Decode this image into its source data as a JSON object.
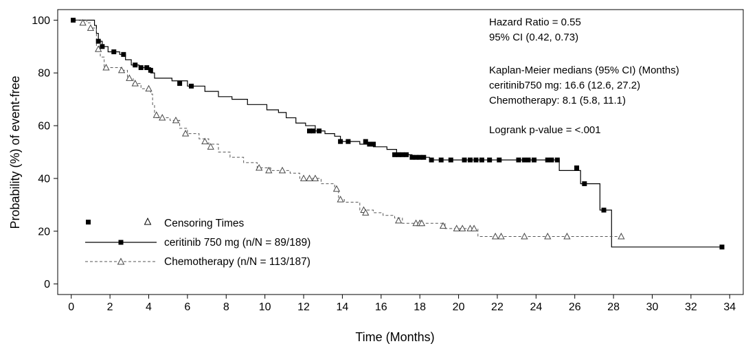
{
  "chart_data": {
    "type": "line",
    "subtype": "kaplan-meier",
    "xlabel": "Time (Months)",
    "ylabel": "Probability (%) of event-free",
    "xlim": [
      -0.7,
      34.7
    ],
    "ylim": [
      -4,
      104
    ],
    "xticks": [
      0,
      2,
      4,
      6,
      8,
      10,
      12,
      14,
      16,
      18,
      20,
      22,
      24,
      26,
      28,
      30,
      32,
      34
    ],
    "yticks": [
      0,
      20,
      40,
      60,
      80,
      100
    ],
    "grid": false,
    "annotations": [
      "Hazard Ratio = 0.55",
      "95% CI (0.42, 0.73)",
      "Kaplan-Meier medians (95% CI) (Months)",
      "ceritinib750 mg: 16.6 (12.6, 27.2)",
      "Chemotherapy: 8.1 (5.8, 11.1)",
      "Logrank p-value = <.001"
    ],
    "legend": {
      "position": "bottom-left",
      "censoring_label": "Censoring Times",
      "entries": [
        "ceritinib 750 mg (n/N = 89/189)",
        "Chemotherapy (n/N = 113/187)"
      ]
    },
    "series": [
      {
        "name": "ceritinib 750 mg (n/N = 89/189)",
        "line_style": "solid",
        "marker": "filled-square",
        "color": "#000000",
        "steps": [
          [
            0,
            100
          ],
          [
            1.2,
            98
          ],
          [
            1.3,
            95
          ],
          [
            1.4,
            92
          ],
          [
            1.6,
            90
          ],
          [
            1.9,
            88
          ],
          [
            2.5,
            87
          ],
          [
            2.8,
            85
          ],
          [
            3.1,
            83
          ],
          [
            3.5,
            82
          ],
          [
            4.1,
            80
          ],
          [
            4.3,
            78
          ],
          [
            5.2,
            77
          ],
          [
            6.0,
            75
          ],
          [
            6.9,
            73
          ],
          [
            7.6,
            71
          ],
          [
            8.3,
            70
          ],
          [
            9.1,
            68
          ],
          [
            10.1,
            66
          ],
          [
            10.7,
            65
          ],
          [
            11.1,
            63
          ],
          [
            11.6,
            61
          ],
          [
            12.1,
            60
          ],
          [
            12.6,
            58
          ],
          [
            13.1,
            57
          ],
          [
            13.6,
            56
          ],
          [
            13.9,
            54
          ],
          [
            14.9,
            53
          ],
          [
            15.6,
            52
          ],
          [
            16.3,
            51
          ],
          [
            16.8,
            49
          ],
          [
            17.6,
            48
          ],
          [
            18.5,
            47
          ],
          [
            25.2,
            43
          ],
          [
            26.3,
            38
          ],
          [
            27.3,
            28
          ],
          [
            27.9,
            14
          ],
          [
            33.6,
            14
          ]
        ],
        "censor_times": [
          [
            0.1,
            100
          ],
          [
            1.4,
            92
          ],
          [
            1.6,
            90
          ],
          [
            2.2,
            88
          ],
          [
            2.7,
            87
          ],
          [
            3.3,
            83
          ],
          [
            3.6,
            82
          ],
          [
            3.9,
            82
          ],
          [
            4.1,
            81
          ],
          [
            5.6,
            76
          ],
          [
            6.2,
            75
          ],
          [
            12.3,
            58
          ],
          [
            12.5,
            58
          ],
          [
            12.8,
            58
          ],
          [
            13.9,
            54
          ],
          [
            14.3,
            54
          ],
          [
            15.2,
            54
          ],
          [
            15.4,
            53
          ],
          [
            15.6,
            53
          ],
          [
            16.7,
            49
          ],
          [
            16.9,
            49
          ],
          [
            17.1,
            49
          ],
          [
            17.3,
            49
          ],
          [
            17.6,
            48
          ],
          [
            17.8,
            48
          ],
          [
            18.0,
            48
          ],
          [
            18.2,
            48
          ],
          [
            18.6,
            47
          ],
          [
            19.1,
            47
          ],
          [
            19.6,
            47
          ],
          [
            20.3,
            47
          ],
          [
            20.6,
            47
          ],
          [
            20.9,
            47
          ],
          [
            21.2,
            47
          ],
          [
            21.6,
            47
          ],
          [
            22.1,
            47
          ],
          [
            23.1,
            47
          ],
          [
            23.4,
            47
          ],
          [
            23.6,
            47
          ],
          [
            23.9,
            47
          ],
          [
            24.6,
            47
          ],
          [
            24.8,
            47
          ],
          [
            25.1,
            47
          ],
          [
            26.1,
            44
          ],
          [
            26.5,
            38
          ],
          [
            27.5,
            28
          ],
          [
            33.6,
            14
          ]
        ]
      },
      {
        "name": "Chemotherapy (n/N = 113/187)",
        "line_style": "dashed",
        "marker": "open-triangle",
        "color": "#555555",
        "steps": [
          [
            0,
            100
          ],
          [
            0.8,
            99
          ],
          [
            1.0,
            97
          ],
          [
            1.3,
            90
          ],
          [
            1.5,
            86
          ],
          [
            1.7,
            82
          ],
          [
            2.6,
            81
          ],
          [
            2.9,
            78
          ],
          [
            3.2,
            76
          ],
          [
            3.6,
            74
          ],
          [
            4.1,
            72
          ],
          [
            4.2,
            68
          ],
          [
            4.3,
            65
          ],
          [
            4.4,
            63
          ],
          [
            5.1,
            62
          ],
          [
            5.6,
            59
          ],
          [
            6.0,
            57
          ],
          [
            6.6,
            55
          ],
          [
            7.1,
            53
          ],
          [
            7.6,
            50
          ],
          [
            8.2,
            48
          ],
          [
            8.9,
            46
          ],
          [
            9.6,
            44
          ],
          [
            10.3,
            43
          ],
          [
            11.3,
            42
          ],
          [
            11.8,
            40
          ],
          [
            12.9,
            38
          ],
          [
            13.6,
            36
          ],
          [
            13.8,
            32
          ],
          [
            14.1,
            31
          ],
          [
            14.9,
            28
          ],
          [
            15.6,
            27
          ],
          [
            16.1,
            26
          ],
          [
            16.7,
            25
          ],
          [
            17.1,
            23
          ],
          [
            19.3,
            21
          ],
          [
            21.0,
            18
          ],
          [
            28.4,
            18
          ]
        ],
        "censor_times": [
          [
            0.6,
            99
          ],
          [
            1.0,
            97
          ],
          [
            1.4,
            89
          ],
          [
            1.8,
            82
          ],
          [
            2.6,
            81
          ],
          [
            3.0,
            78
          ],
          [
            3.3,
            76
          ],
          [
            4.0,
            74
          ],
          [
            4.4,
            64
          ],
          [
            4.7,
            63
          ],
          [
            5.4,
            62
          ],
          [
            5.9,
            57
          ],
          [
            6.9,
            54
          ],
          [
            7.2,
            52
          ],
          [
            9.7,
            44
          ],
          [
            10.2,
            43
          ],
          [
            10.9,
            43
          ],
          [
            12.0,
            40
          ],
          [
            12.3,
            40
          ],
          [
            12.6,
            40
          ],
          [
            13.7,
            36
          ],
          [
            13.9,
            32
          ],
          [
            15.1,
            28
          ],
          [
            15.2,
            27
          ],
          [
            16.9,
            24
          ],
          [
            17.8,
            23
          ],
          [
            18.0,
            23
          ],
          [
            18.1,
            23
          ],
          [
            19.2,
            22
          ],
          [
            19.9,
            21
          ],
          [
            20.2,
            21
          ],
          [
            20.6,
            21
          ],
          [
            20.8,
            21
          ],
          [
            21.9,
            18
          ],
          [
            22.2,
            18
          ],
          [
            23.4,
            18
          ],
          [
            24.6,
            18
          ],
          [
            25.6,
            18
          ],
          [
            28.4,
            18
          ]
        ]
      }
    ]
  }
}
